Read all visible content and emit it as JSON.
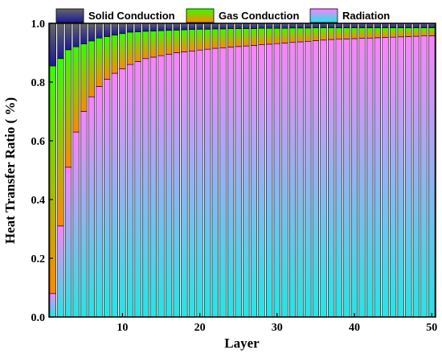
{
  "chart_data": {
    "type": "bar",
    "stacked": true,
    "xlabel": "Layer",
    "ylabel": "Heat Transfer Ratio ( %)",
    "xlim": [
      0.5,
      50.5
    ],
    "ylim": [
      0,
      1.0
    ],
    "x_ticks": [
      10,
      20,
      30,
      40,
      50
    ],
    "y_ticks": [
      0.0,
      0.2,
      0.4,
      0.6,
      0.8,
      1.0
    ],
    "y_tick_labels": [
      "0.0",
      "0.2",
      "0.4",
      "0.6",
      "0.8",
      "1.0"
    ],
    "grid": false,
    "legend_position": "top",
    "categories": [
      1,
      2,
      3,
      4,
      5,
      6,
      7,
      8,
      9,
      10,
      11,
      12,
      13,
      14,
      15,
      16,
      17,
      18,
      19,
      20,
      21,
      22,
      23,
      24,
      25,
      26,
      27,
      28,
      29,
      30,
      31,
      32,
      33,
      34,
      35,
      36,
      37,
      38,
      39,
      40,
      41,
      42,
      43,
      44,
      45,
      46,
      47,
      48,
      49,
      50
    ],
    "series": [
      {
        "name": "Radiation",
        "colors": [
          "#22e6e6",
          "#ff80ff"
        ],
        "values": [
          0.08,
          0.31,
          0.51,
          0.63,
          0.7,
          0.75,
          0.785,
          0.81,
          0.83,
          0.845,
          0.86,
          0.87,
          0.88,
          0.885,
          0.89,
          0.895,
          0.9,
          0.903,
          0.906,
          0.909,
          0.912,
          0.915,
          0.917,
          0.919,
          0.921,
          0.923,
          0.925,
          0.927,
          0.929,
          0.931,
          0.933,
          0.935,
          0.937,
          0.939,
          0.941,
          0.943,
          0.945,
          0.946,
          0.947,
          0.948,
          0.949,
          0.95,
          0.951,
          0.952,
          0.953,
          0.954,
          0.955,
          0.956,
          0.957,
          0.958
        ]
      },
      {
        "name": "Gas Conduction",
        "colors": [
          "#ff8800",
          "#33ff00"
        ],
        "values": [
          0.775,
          0.57,
          0.4,
          0.29,
          0.23,
          0.19,
          0.165,
          0.145,
          0.13,
          0.12,
          0.11,
          0.101,
          0.093,
          0.089,
          0.085,
          0.081,
          0.077,
          0.075,
          0.073,
          0.071,
          0.068,
          0.066,
          0.064,
          0.063,
          0.061,
          0.059,
          0.057,
          0.056,
          0.054,
          0.052,
          0.05,
          0.049,
          0.047,
          0.045,
          0.044,
          0.042,
          0.04,
          0.039,
          0.038,
          0.037,
          0.036,
          0.035,
          0.034,
          0.033,
          0.032,
          0.031,
          0.03,
          0.029,
          0.028,
          0.027
        ]
      },
      {
        "name": "Solid Conduction",
        "colors": [
          "#1a1a99",
          "#666666"
        ],
        "values": [
          0.145,
          0.12,
          0.09,
          0.08,
          0.07,
          0.06,
          0.05,
          0.045,
          0.04,
          0.035,
          0.03,
          0.029,
          0.027,
          0.026,
          0.025,
          0.024,
          0.023,
          0.022,
          0.021,
          0.02,
          0.02,
          0.019,
          0.019,
          0.018,
          0.018,
          0.018,
          0.018,
          0.017,
          0.017,
          0.017,
          0.017,
          0.016,
          0.016,
          0.016,
          0.015,
          0.015,
          0.015,
          0.015,
          0.015,
          0.015,
          0.015,
          0.015,
          0.015,
          0.015,
          0.015,
          0.015,
          0.015,
          0.015,
          0.015,
          0.015
        ]
      }
    ],
    "legend": [
      {
        "name": "Solid Conduction",
        "colors": [
          "#1a1a99",
          "#666666"
        ]
      },
      {
        "name": "Gas Conduction",
        "colors": [
          "#ff8800",
          "#33ff00"
        ]
      },
      {
        "name": "Radiation",
        "colors": [
          "#22e6e6",
          "#ff80ff"
        ]
      }
    ]
  }
}
